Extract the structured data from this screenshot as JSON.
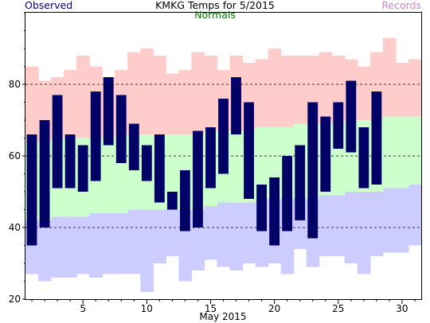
{
  "chart_data": {
    "type": "bar",
    "title": "KMKG Temps for 5/2015",
    "xlabel": "May 2015",
    "ylabel": "",
    "xlim": [
      0.5,
      31.5
    ],
    "ylim": [
      20,
      100
    ],
    "x_ticks": [
      5,
      10,
      15,
      20,
      25,
      30
    ],
    "y_ticks": [
      20,
      40,
      60,
      80
    ],
    "grid_y": [
      40,
      60,
      80
    ],
    "legend": [
      "Observed",
      "Normals",
      "Records"
    ],
    "colors": {
      "observed": "#000066",
      "normals": "#ccffcc",
      "records_high": "#ffcccc",
      "records_low": "#ccccff"
    },
    "days": [
      1,
      2,
      3,
      4,
      5,
      6,
      7,
      8,
      9,
      10,
      11,
      12,
      13,
      14,
      15,
      16,
      17,
      18,
      19,
      20,
      21,
      22,
      23,
      24,
      25,
      26,
      27,
      28,
      29,
      30,
      31
    ],
    "observed_high": [
      66,
      70,
      77,
      66,
      63,
      78,
      82,
      77,
      69,
      63,
      66,
      50,
      56,
      67,
      68,
      76,
      82,
      75,
      52,
      54,
      60,
      63,
      75,
      71,
      75,
      81,
      68,
      78,
      null,
      null,
      null
    ],
    "observed_low": [
      35,
      40,
      51,
      51,
      50,
      53,
      63,
      58,
      56,
      53,
      47,
      45,
      39,
      40,
      51,
      55,
      66,
      48,
      39,
      35,
      39,
      42,
      37,
      50,
      62,
      61,
      51,
      52,
      null,
      null,
      null
    ],
    "normal_high": [
      64,
      64,
      65,
      65,
      65,
      65,
      65,
      66,
      66,
      66,
      66,
      66,
      66,
      66,
      67,
      67,
      67,
      67,
      68,
      68,
      68,
      69,
      69,
      69,
      69,
      70,
      70,
      70,
      71,
      71,
      71
    ],
    "normal_low": [
      42,
      42,
      43,
      43,
      43,
      44,
      44,
      44,
      45,
      45,
      45,
      45,
      45,
      45,
      46,
      47,
      47,
      47,
      48,
      48,
      48,
      48,
      48,
      49,
      49,
      50,
      50,
      50,
      51,
      51,
      52
    ],
    "record_high": [
      85,
      81,
      82,
      84,
      88,
      85,
      82,
      84,
      89,
      90,
      88,
      83,
      84,
      89,
      88,
      84,
      88,
      86,
      87,
      90,
      88,
      88,
      88,
      89,
      88,
      87,
      85,
      89,
      93,
      86,
      87
    ],
    "record_low": [
      27,
      25,
      26,
      26,
      27,
      26,
      27,
      27,
      27,
      22,
      30,
      32,
      25,
      28,
      31,
      29,
      28,
      30,
      29,
      30,
      27,
      34,
      29,
      32,
      32,
      30,
      27,
      32,
      33,
      33,
      35
    ]
  }
}
